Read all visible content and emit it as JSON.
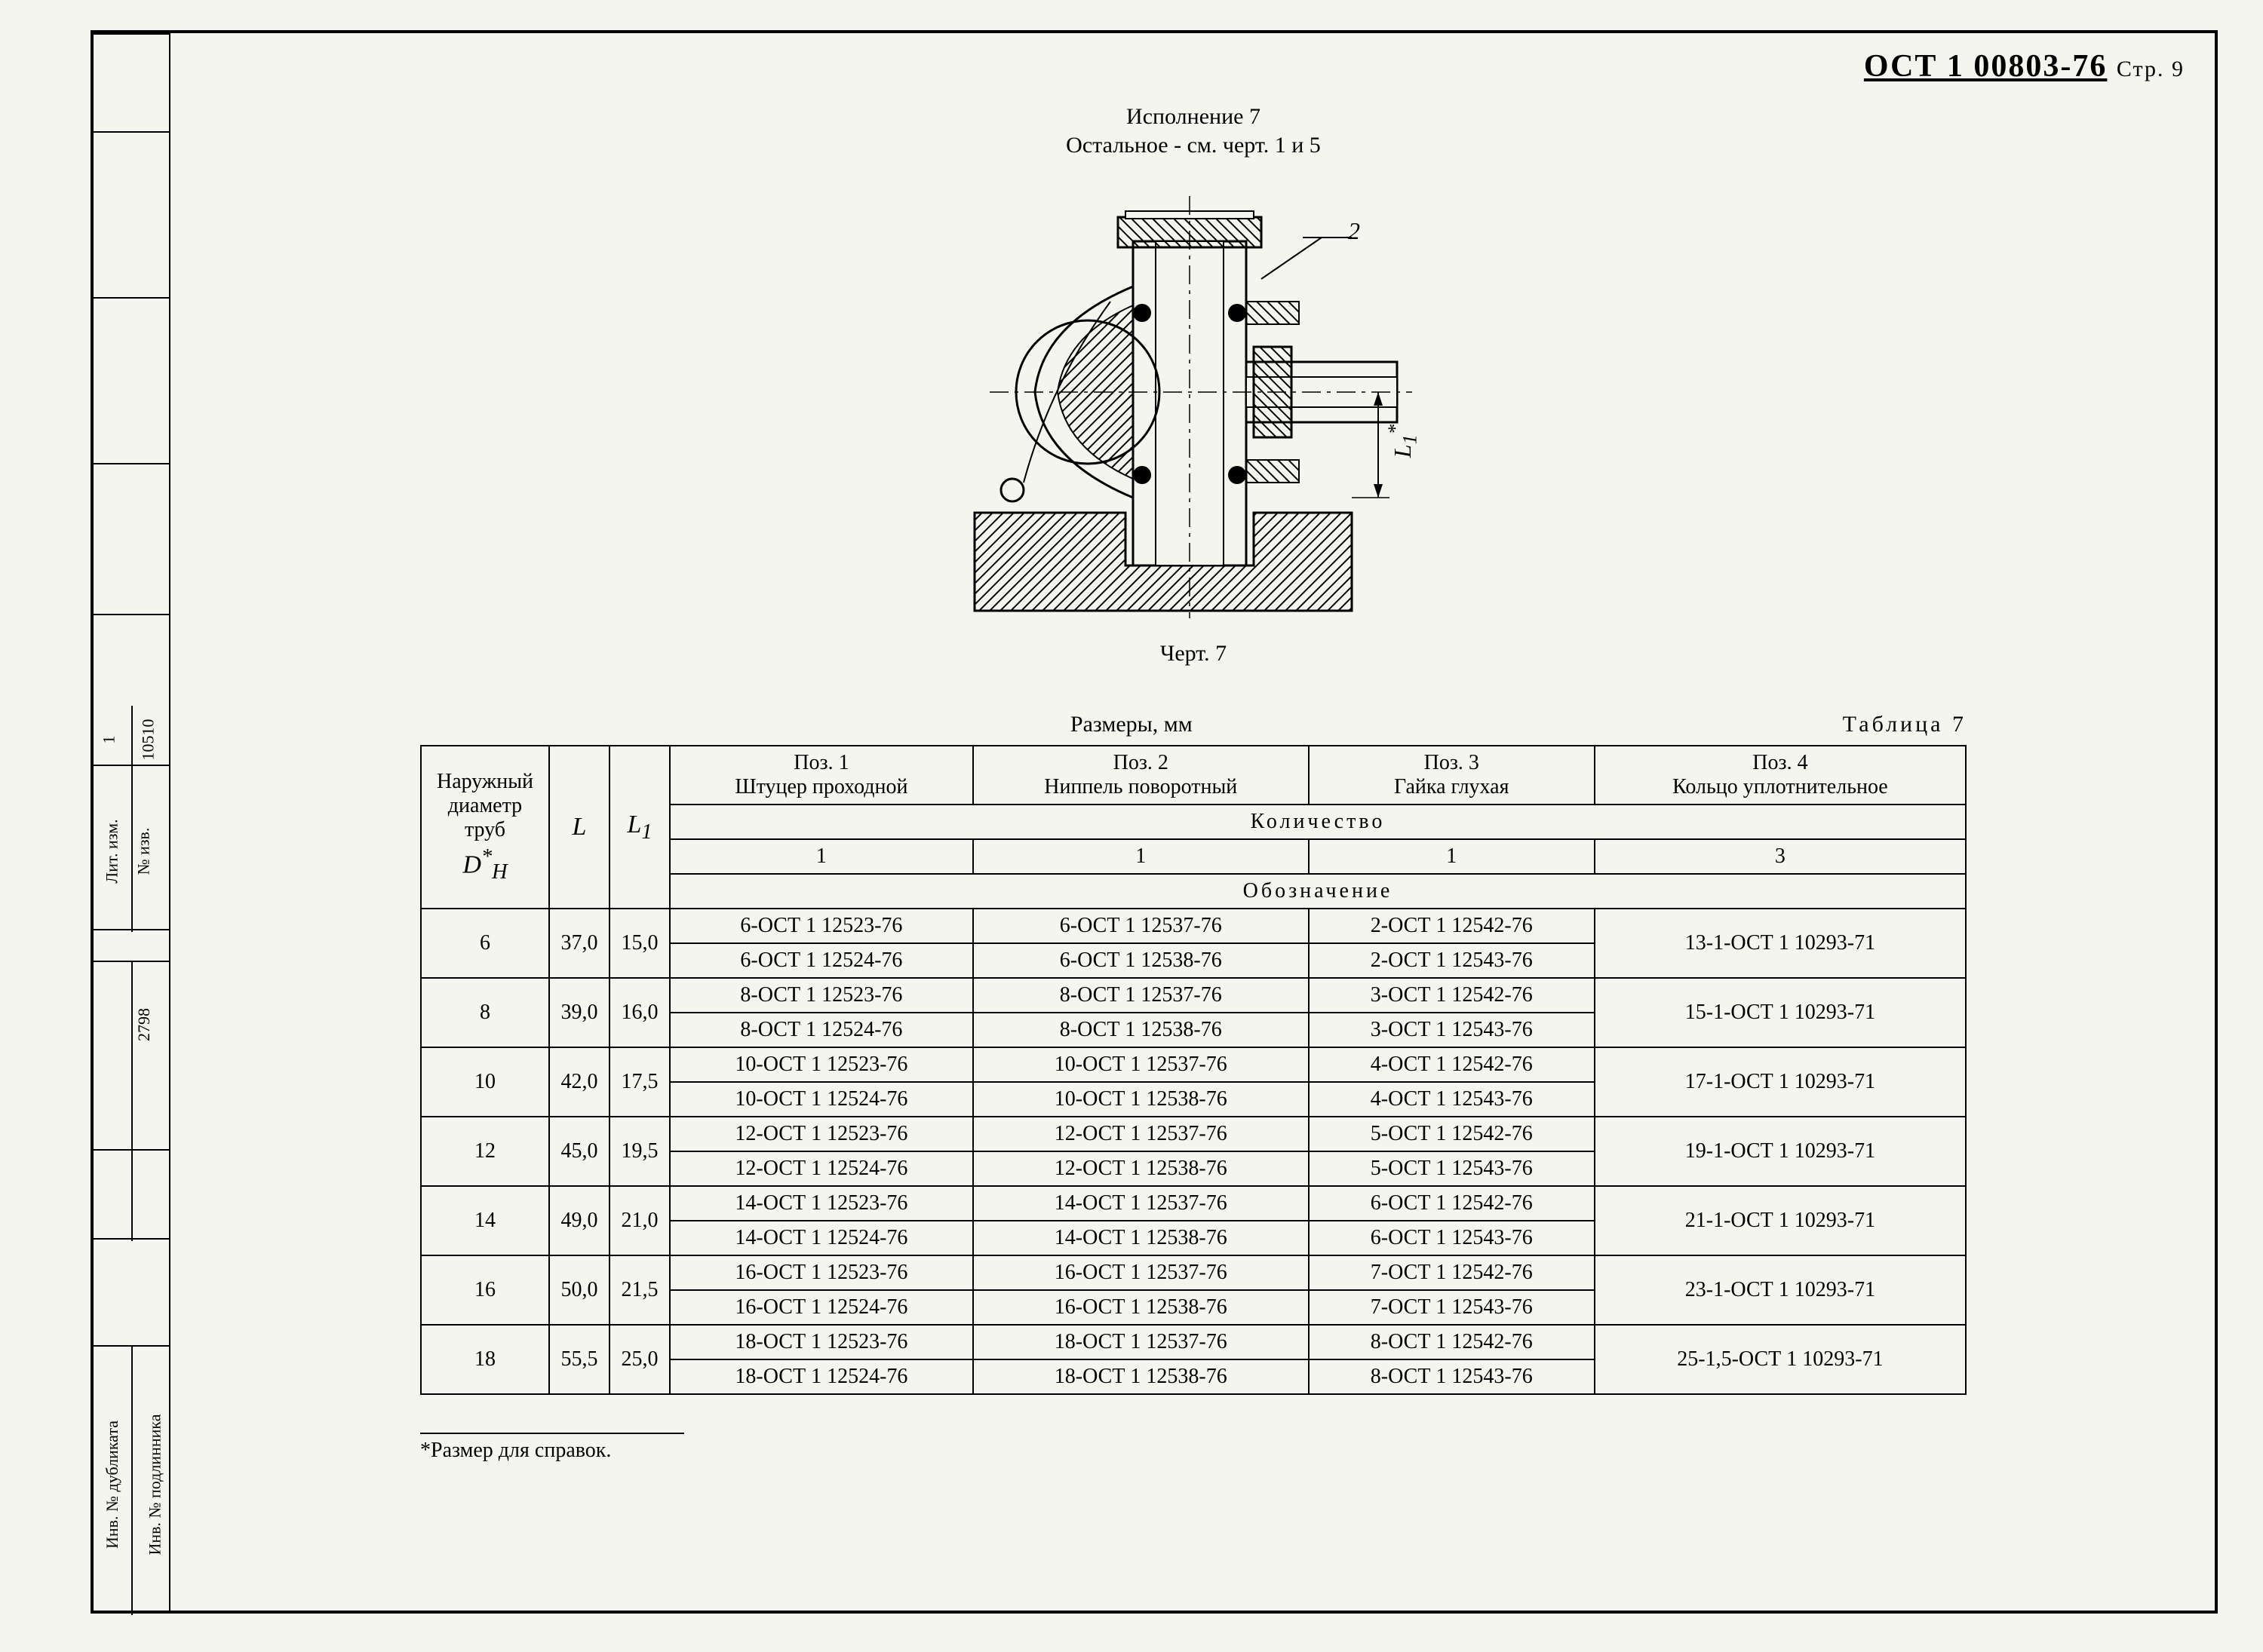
{
  "header": {
    "doc_number_prefix": "ОСТ 1 00803-76",
    "page_label": "Стр. 9"
  },
  "titles": {
    "line1": "Исполнение 7",
    "line2": "Остальное - см. черт. 1 и 5",
    "drawing_caption": "Черт. 7",
    "dimensions_label": "Размеры, мм",
    "table_label": "Таблица  7"
  },
  "drawing": {
    "callout_2": "2",
    "callout_L1": "L₁*"
  },
  "table": {
    "col_headers": {
      "dh": "Наружный диаметр труб",
      "dh_symbol": "D*ₕ",
      "L": "L",
      "L1": "L₁",
      "pos1_title": "Поз. 1",
      "pos1_sub": "Штуцер проходной",
      "pos2_title": "Поз. 2",
      "pos2_sub": "Ниппель поворотный",
      "pos3_title": "Поз. 3",
      "pos3_sub": "Гайка глухая",
      "pos4_title": "Поз. 4",
      "pos4_sub": "Кольцо уплотнительное",
      "quantity_label": "Количество",
      "qty1": "1",
      "qty2": "1",
      "qty3": "1",
      "qty4": "3",
      "designation_label": "Обозначение"
    },
    "rows": [
      {
        "dh": "6",
        "L": "37,0",
        "L1": "15,0",
        "p1a": "6-ОСТ 1 12523-76",
        "p1b": "6-ОСТ 1 12524-76",
        "p2a": "6-ОСТ 1 12537-76",
        "p2b": "6-ОСТ 1 12538-76",
        "p3a": "2-ОСТ 1 12542-76",
        "p3b": "2-ОСТ 1 12543-76",
        "p4": "13-1-ОСТ 1 10293-71"
      },
      {
        "dh": "8",
        "L": "39,0",
        "L1": "16,0",
        "p1a": "8-ОСТ 1 12523-76",
        "p1b": "8-ОСТ 1 12524-76",
        "p2a": "8-ОСТ 1 12537-76",
        "p2b": "8-ОСТ 1 12538-76",
        "p3a": "3-ОСТ 1 12542-76",
        "p3b": "3-ОСТ 1 12543-76",
        "p4": "15-1-ОСТ 1 10293-71"
      },
      {
        "dh": "10",
        "L": "42,0",
        "L1": "17,5",
        "p1a": "10-ОСТ 1 12523-76",
        "p1b": "10-ОСТ 1 12524-76",
        "p2a": "10-ОСТ 1 12537-76",
        "p2b": "10-ОСТ 1 12538-76",
        "p3a": "4-ОСТ 1 12542-76",
        "p3b": "4-ОСТ 1 12543-76",
        "p4": "17-1-ОСТ 1 10293-71"
      },
      {
        "dh": "12",
        "L": "45,0",
        "L1": "19,5",
        "p1a": "12-ОСТ 1 12523-76",
        "p1b": "12-ОСТ 1 12524-76",
        "p2a": "12-ОСТ 1 12537-76",
        "p2b": "12-ОСТ 1 12538-76",
        "p3a": "5-ОСТ 1 12542-76",
        "p3b": "5-ОСТ 1 12543-76",
        "p4": "19-1-ОСТ 1 10293-71"
      },
      {
        "dh": "14",
        "L": "49,0",
        "L1": "21,0",
        "p1a": "14-ОСТ 1 12523-76",
        "p1b": "14-ОСТ 1 12524-76",
        "p2a": "14-ОСТ 1 12537-76",
        "p2b": "14-ОСТ 1 12538-76",
        "p3a": "6-ОСТ 1 12542-76",
        "p3b": "6-ОСТ 1 12543-76",
        "p4": "21-1-ОСТ 1 10293-71"
      },
      {
        "dh": "16",
        "L": "50,0",
        "L1": "21,5",
        "p1a": "16-ОСТ 1 12523-76",
        "p1b": "16-ОСТ 1 12524-76",
        "p2a": "16-ОСТ 1 12537-76",
        "p2b": "16-ОСТ 1 12538-76",
        "p3a": "7-ОСТ 1 12542-76",
        "p3b": "7-ОСТ 1 12543-76",
        "p4": "23-1-ОСТ 1 10293-71"
      },
      {
        "dh": "18",
        "L": "55,5",
        "L1": "25,0",
        "p1a": "18-ОСТ 1 12523-76",
        "p1b": "18-ОСТ 1 12524-76",
        "p2a": "18-ОСТ 1 12537-76",
        "p2b": "18-ОСТ 1 12538-76",
        "p3a": "8-ОСТ 1 12542-76",
        "p3b": "8-ОСТ 1 12543-76",
        "p4": "25-1,5-ОСТ 1 10293-71"
      }
    ]
  },
  "footnote": "*Размер для справок.",
  "sidebar": {
    "top1_a": "Лит. изм.",
    "top1_b": "№ изв.",
    "top1_c": "1",
    "top1_d": "10510",
    "mid": "2798",
    "bot_a": "Инв. № дубликата",
    "bot_b": "Инв. № подлинника"
  }
}
